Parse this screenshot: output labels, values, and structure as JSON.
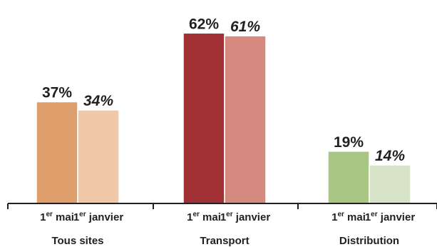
{
  "chart_data": {
    "type": "bar",
    "groups": [
      "Tous sites",
      "Transport",
      "Distribution"
    ],
    "bar_labels": [
      {
        "base": "1",
        "sup": "er",
        "rest": " mai"
      },
      {
        "base": "1",
        "sup": "er",
        "rest": " janvier"
      }
    ],
    "series": [
      {
        "values": [
          37,
          62,
          19
        ],
        "value_labels": [
          "37%",
          "62%",
          "19%"
        ],
        "italic": false,
        "colors": [
          "#df9f6c",
          "#a03033",
          "#a9c583"
        ]
      },
      {
        "values": [
          34,
          61,
          14
        ],
        "value_labels": [
          "34%",
          "61%",
          "14%"
        ],
        "italic": true,
        "colors": [
          "#f0c8a8",
          "#d58a80",
          "#d7e3c6"
        ]
      }
    ],
    "ylim": [
      0,
      100
    ],
    "axis_color": "#231f20"
  }
}
